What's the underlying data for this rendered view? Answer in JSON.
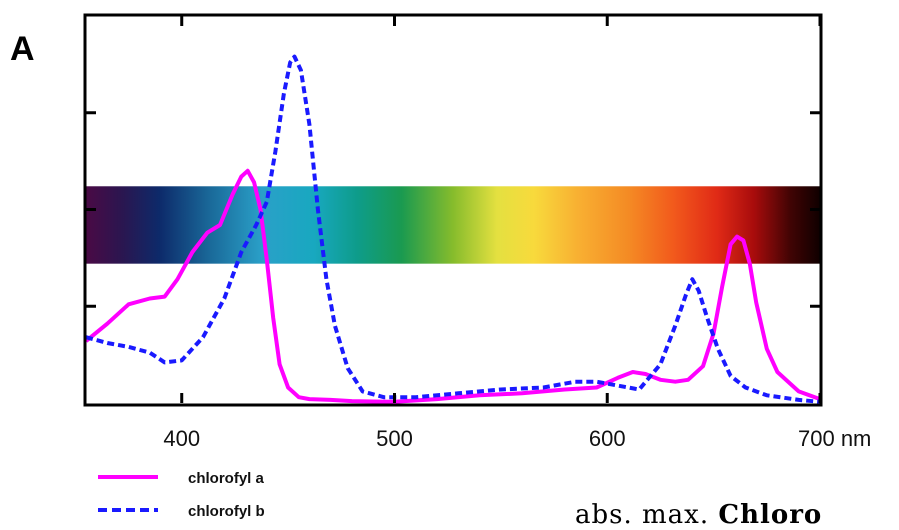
{
  "panel_label": "A",
  "caption": {
    "prefix": "abs. max.",
    "bold": "Chloro"
  },
  "chart_data": {
    "type": "line",
    "title": "",
    "xlabel": "",
    "ylabel": "",
    "xlim": [
      355,
      700
    ],
    "ylim": [
      0,
      1
    ],
    "x_ticks": [
      400,
      500,
      600,
      700
    ],
    "x_tick_labels": [
      "400",
      "500",
      "600",
      "700 nm"
    ],
    "y_ticks": [
      0.25,
      0.5,
      0.75
    ],
    "grid": false,
    "legend_position": "bottom-left",
    "spectrum_band": {
      "x_range": [
        355,
        700
      ],
      "y_range": [
        0.36,
        0.56
      ]
    },
    "series": [
      {
        "name": "chlorofyl a",
        "color": "#ff00ff",
        "dash": "solid",
        "x": [
          355,
          365,
          375,
          385,
          392,
          398,
          405,
          412,
          418,
          424,
          428,
          431,
          434,
          437,
          440,
          443,
          446,
          450,
          455,
          460,
          470,
          480,
          490,
          500,
          520,
          540,
          560,
          580,
          595,
          605,
          612,
          618,
          625,
          632,
          638,
          645,
          650,
          654,
          658,
          661,
          664,
          667,
          670,
          675,
          680,
          690,
          700
        ],
        "y": [
          0.16,
          0.205,
          0.255,
          0.27,
          0.275,
          0.32,
          0.39,
          0.44,
          0.46,
          0.54,
          0.585,
          0.6,
          0.57,
          0.5,
          0.37,
          0.22,
          0.1,
          0.04,
          0.015,
          0.01,
          0.008,
          0.005,
          0.004,
          0.003,
          0.01,
          0.02,
          0.025,
          0.035,
          0.04,
          0.065,
          0.08,
          0.075,
          0.06,
          0.055,
          0.06,
          0.095,
          0.18,
          0.3,
          0.41,
          0.43,
          0.42,
          0.36,
          0.26,
          0.14,
          0.08,
          0.03,
          0.01
        ]
      },
      {
        "name": "chlorofyl b",
        "color": "#1a1aff",
        "dash": "dashed",
        "x": [
          355,
          365,
          375,
          385,
          392,
          400,
          410,
          420,
          428,
          435,
          440,
          444,
          448,
          451,
          453,
          456,
          460,
          464,
          468,
          472,
          478,
          485,
          495,
          510,
          530,
          550,
          570,
          585,
          595,
          605,
          615,
          625,
          632,
          637,
          640,
          643,
          647,
          652,
          658,
          665,
          675,
          690,
          700
        ],
        "y": [
          0.17,
          0.155,
          0.145,
          0.13,
          0.105,
          0.11,
          0.17,
          0.27,
          0.39,
          0.46,
          0.52,
          0.65,
          0.8,
          0.88,
          0.895,
          0.86,
          0.72,
          0.5,
          0.32,
          0.2,
          0.09,
          0.03,
          0.015,
          0.015,
          0.025,
          0.035,
          0.04,
          0.055,
          0.055,
          0.045,
          0.035,
          0.1,
          0.2,
          0.28,
          0.32,
          0.29,
          0.22,
          0.14,
          0.07,
          0.04,
          0.02,
          0.008,
          0.003
        ]
      }
    ]
  }
}
